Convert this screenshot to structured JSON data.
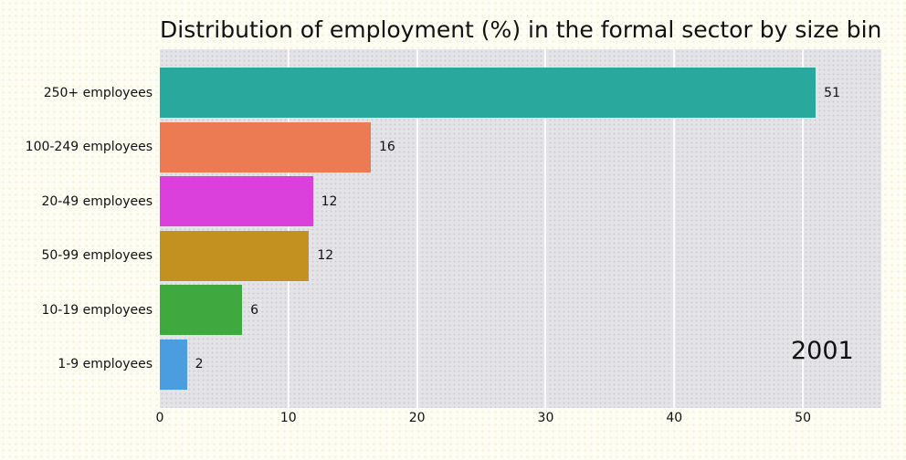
{
  "title": "Distribution of employment (%) in the formal sector by size bin",
  "annotation": {
    "text": "2001"
  },
  "colors": {
    "figure_background": "#fdfdf4",
    "plot_background": "#e4e4e7",
    "gridline": "#fbfbfb",
    "text": "#111111"
  },
  "chart_data": {
    "type": "bar",
    "orientation": "horizontal",
    "title": "Distribution of employment (%) in the formal sector by size bin",
    "categories": [
      "250+ employees",
      "100-249 employees",
      "20-49 employees",
      "50-99 employees",
      "10-19 employees",
      "1-9 employees"
    ],
    "values": [
      51,
      16,
      12,
      12,
      6,
      2
    ],
    "precise_values": [
      51.0,
      16.4,
      11.9,
      11.6,
      6.4,
      2.1
    ],
    "bar_colors": [
      "#29a89d",
      "#ec7a52",
      "#dc40dc",
      "#c29120",
      "#3fa93f",
      "#4a9ddf"
    ],
    "value_labels": [
      "51",
      "16",
      "12",
      "12",
      "6",
      "2"
    ],
    "xlabel": "",
    "ylabel": "",
    "x_ticks": [
      0,
      10,
      20,
      30,
      40,
      50
    ],
    "xlim": [
      0,
      56.1
    ],
    "grid": "vertical",
    "legend": "none",
    "annotation": "2001"
  }
}
